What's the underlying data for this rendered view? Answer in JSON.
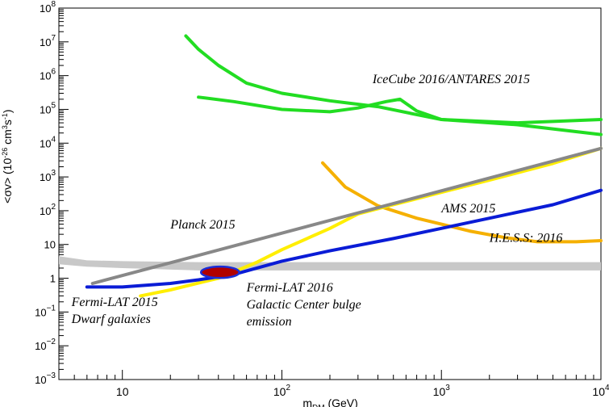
{
  "chart_data": {
    "type": "line",
    "title": "",
    "xlabel_main": "m",
    "xlabel_sub": "DM",
    "xlabel_unit": " (GeV)",
    "ylabel_main": "<σv> (10",
    "ylabel_sup1": "-26",
    "ylabel_mid": " cm",
    "ylabel_sup2": "3",
    "ylabel_s": "s",
    "ylabel_sup3": "-1",
    "ylabel_end": ")",
    "x_scale": "log",
    "y_scale": "log",
    "xlim": [
      4,
      10000
    ],
    "ylim": [
      0.001,
      100000000
    ],
    "x_ticks": [
      {
        "value": 10,
        "base": "10",
        "exp": ""
      },
      {
        "value": 100,
        "base": "10",
        "exp": "2"
      },
      {
        "value": 1000,
        "base": "10",
        "exp": "3"
      },
      {
        "value": 10000,
        "base": "10",
        "exp": "4"
      }
    ],
    "y_ticks": [
      {
        "value": 0.001,
        "base": "10",
        "exp": "−3"
      },
      {
        "value": 0.01,
        "base": "10",
        "exp": "−2"
      },
      {
        "value": 0.1,
        "base": "10",
        "exp": "−1"
      },
      {
        "value": 1,
        "base": "1",
        "exp": ""
      },
      {
        "value": 10,
        "base": "10",
        "exp": ""
      },
      {
        "value": 100,
        "base": "10",
        "exp": "2"
      },
      {
        "value": 1000,
        "base": "10",
        "exp": "3"
      },
      {
        "value": 10000,
        "base": "10",
        "exp": "4"
      },
      {
        "value": 100000,
        "base": "10",
        "exp": "5"
      },
      {
        "value": 1000000,
        "base": "10",
        "exp": "6"
      },
      {
        "value": 10000000,
        "base": "10",
        "exp": "7"
      },
      {
        "value": 100000000,
        "base": "10",
        "exp": "8"
      }
    ],
    "bands": [
      {
        "id": "thermal-relic-band",
        "color": "#c8c8c8",
        "upper": [
          [
            4,
            4.5
          ],
          [
            6,
            3.4
          ],
          [
            10,
            3.2
          ],
          [
            30,
            3.0
          ],
          [
            10000,
            3.0
          ]
        ],
        "lower": [
          [
            4,
            2.6
          ],
          [
            6,
            2.2
          ],
          [
            10,
            2.0
          ],
          [
            30,
            1.7
          ],
          [
            10000,
            1.7
          ]
        ]
      }
    ],
    "series": [
      {
        "id": "icecube-upper",
        "color": "#22dd22",
        "width": 4,
        "x": [
          25,
          30,
          40,
          60,
          100,
          200,
          400,
          700,
          1000,
          3000,
          10000
        ],
        "y": [
          15000000,
          6000000,
          2000000,
          600000,
          300000,
          180000,
          120000,
          70000,
          50000,
          35000,
          18000
        ]
      },
      {
        "id": "icecube-lower",
        "color": "#22dd22",
        "width": 4,
        "x": [
          30,
          50,
          100,
          200,
          300,
          450,
          550,
          700,
          1000,
          3000,
          10000
        ],
        "y": [
          230000,
          170000,
          100000,
          85000,
          110000,
          170000,
          200000,
          90000,
          50000,
          40000,
          50000
        ]
      },
      {
        "id": "hess-2016",
        "color": "#f5b000",
        "width": 4,
        "x": [
          180,
          250,
          400,
          700,
          1000,
          1500,
          2500,
          4000,
          7000,
          10000
        ],
        "y": [
          2600,
          500,
          140,
          60,
          40,
          25,
          16,
          12,
          12,
          13
        ]
      },
      {
        "id": "ams-2015",
        "color": "#ffee00",
        "width": 4,
        "x": [
          13,
          20,
          40,
          70,
          100,
          200,
          300,
          500,
          1000,
          2000,
          5000,
          10000
        ],
        "y": [
          0.3,
          0.45,
          1.0,
          3.0,
          7.0,
          30,
          80,
          150,
          350,
          800,
          2500,
          7000
        ]
      },
      {
        "id": "planck-2015",
        "color": "#888888",
        "width": 4,
        "x": [
          6.5,
          10000
        ],
        "y": [
          0.7,
          7000
        ]
      },
      {
        "id": "fermi-lat-2015",
        "color": "#0a1cd6",
        "width": 4,
        "x": [
          6,
          10,
          20,
          30,
          50,
          100,
          200,
          500,
          1000,
          2000,
          5000,
          10000
        ],
        "y": [
          0.55,
          0.55,
          0.7,
          0.9,
          1.3,
          3.2,
          6.5,
          15,
          30,
          60,
          150,
          400
        ]
      }
    ],
    "region": {
      "id": "fermi-lat-2016-gc",
      "fill": "#b00000",
      "stroke": "#1a2ed8",
      "center_x": 41,
      "center_y": 1.5,
      "half_width_dex": 0.12,
      "half_height_dex": 0.17
    },
    "annotations": [
      {
        "id": "icecube-label",
        "lines": [
          "IceCube 2016/ANTARES 2015"
        ],
        "x": 370,
        "y": 600000
      },
      {
        "id": "ams-label",
        "lines": [
          "AMS 2015"
        ],
        "x": 1000,
        "y": 90
      },
      {
        "id": "planck-label",
        "lines": [
          "Planck 2015"
        ],
        "x": 20,
        "y": 30
      },
      {
        "id": "hess-label",
        "lines": [
          "H.E.S.S: 2016"
        ],
        "x": 2000,
        "y": 12
      },
      {
        "id": "fermi-2015-label",
        "lines": [
          "Fermi-LAT 2015",
          "Dwarf galaxies"
        ],
        "x": 4.8,
        "y": 0.15
      },
      {
        "id": "fermi-2016-label",
        "lines": [
          "Fermi-LAT 2016",
          "Galactic Center bulge",
          "emission"
        ],
        "x": 60,
        "y": 0.4
      }
    ]
  }
}
